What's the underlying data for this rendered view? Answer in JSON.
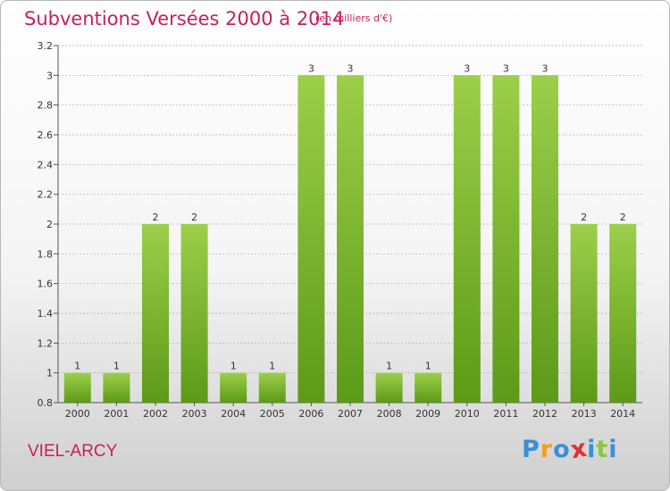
{
  "header": {
    "title": "Subventions Versées 2000 à 2014",
    "unit_note": "(en milliers d'€)"
  },
  "footer": {
    "place": "VIEL-ARCY",
    "logo_letters": [
      {
        "ch": "P",
        "color": "#3b8fd6"
      },
      {
        "ch": "r",
        "color": "#f0a020"
      },
      {
        "ch": "o",
        "color": "#3b8fd6"
      },
      {
        "ch": "x",
        "color": "#e03030"
      },
      {
        "ch": "i",
        "color": "#3b8fd6"
      },
      {
        "ch": "t",
        "color": "#8cc63f"
      },
      {
        "ch": "i",
        "color": "#3b8fd6"
      }
    ]
  },
  "chart_data": {
    "type": "bar",
    "title": "Subventions Versées 2000 à 2014",
    "subtitle": "(en milliers d'€)",
    "xlabel": "",
    "ylabel": "",
    "categories": [
      "2000",
      "2001",
      "2002",
      "2003",
      "2004",
      "2005",
      "2006",
      "2007",
      "2008",
      "2009",
      "2010",
      "2011",
      "2012",
      "2013",
      "2014"
    ],
    "values": [
      1,
      1,
      2,
      2,
      1,
      1,
      3,
      3,
      1,
      1,
      3,
      3,
      3,
      2,
      2
    ],
    "ylim": [
      0.8,
      3.2
    ],
    "yticks": [
      "0.8",
      "1",
      "1.2",
      "1.4",
      "1.6",
      "1.8",
      "2",
      "2.2",
      "2.4",
      "2.6",
      "2.8",
      "3",
      "3.2"
    ],
    "grid": true,
    "legend": "none",
    "colors": {
      "bar_top": "#9ccf4a",
      "bar_bottom": "#5c9a18",
      "grid": "#aaaaaa",
      "axis": "#555555"
    }
  }
}
